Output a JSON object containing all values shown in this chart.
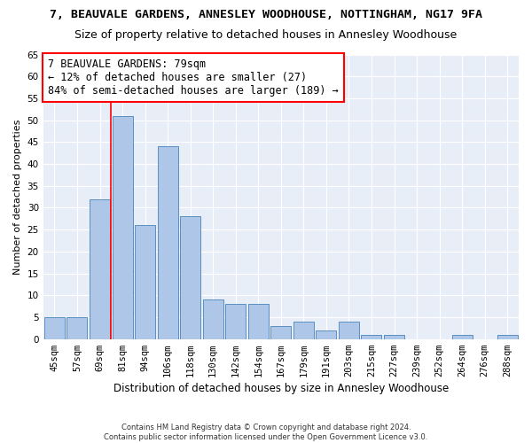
{
  "title": "7, BEAUVALE GARDENS, ANNESLEY WOODHOUSE, NOTTINGHAM, NG17 9FA",
  "subtitle": "Size of property relative to detached houses in Annesley Woodhouse",
  "xlabel": "Distribution of detached houses by size in Annesley Woodhouse",
  "ylabel": "Number of detached properties",
  "categories": [
    "45sqm",
    "57sqm",
    "69sqm",
    "81sqm",
    "94sqm",
    "106sqm",
    "118sqm",
    "130sqm",
    "142sqm",
    "154sqm",
    "167sqm",
    "179sqm",
    "191sqm",
    "203sqm",
    "215sqm",
    "227sqm",
    "239sqm",
    "252sqm",
    "264sqm",
    "276sqm",
    "288sqm"
  ],
  "values": [
    5,
    5,
    32,
    51,
    26,
    44,
    28,
    9,
    8,
    8,
    3,
    4,
    2,
    4,
    1,
    1,
    0,
    0,
    1,
    0,
    1
  ],
  "bar_color": "#aec6e8",
  "bar_edge_color": "#5a8fc0",
  "vline_color": "red",
  "vline_x_index": 3,
  "annotation_line1": "7 BEAUVALE GARDENS: 79sqm",
  "annotation_line2": "← 12% of detached houses are smaller (27)",
  "annotation_line3": "84% of semi-detached houses are larger (189) →",
  "annotation_box_color": "white",
  "annotation_box_edge": "red",
  "ylim": [
    0,
    65
  ],
  "yticks": [
    0,
    5,
    10,
    15,
    20,
    25,
    30,
    35,
    40,
    45,
    50,
    55,
    60,
    65
  ],
  "bg_color": "#e8eef8",
  "footnote": "Contains HM Land Registry data © Crown copyright and database right 2024.\nContains public sector information licensed under the Open Government Licence v3.0.",
  "title_fontsize": 9.5,
  "subtitle_fontsize": 9,
  "annotation_fontsize": 8.5,
  "ylabel_fontsize": 8,
  "xlabel_fontsize": 8.5,
  "tick_fontsize": 7.5,
  "footnote_fontsize": 6
}
